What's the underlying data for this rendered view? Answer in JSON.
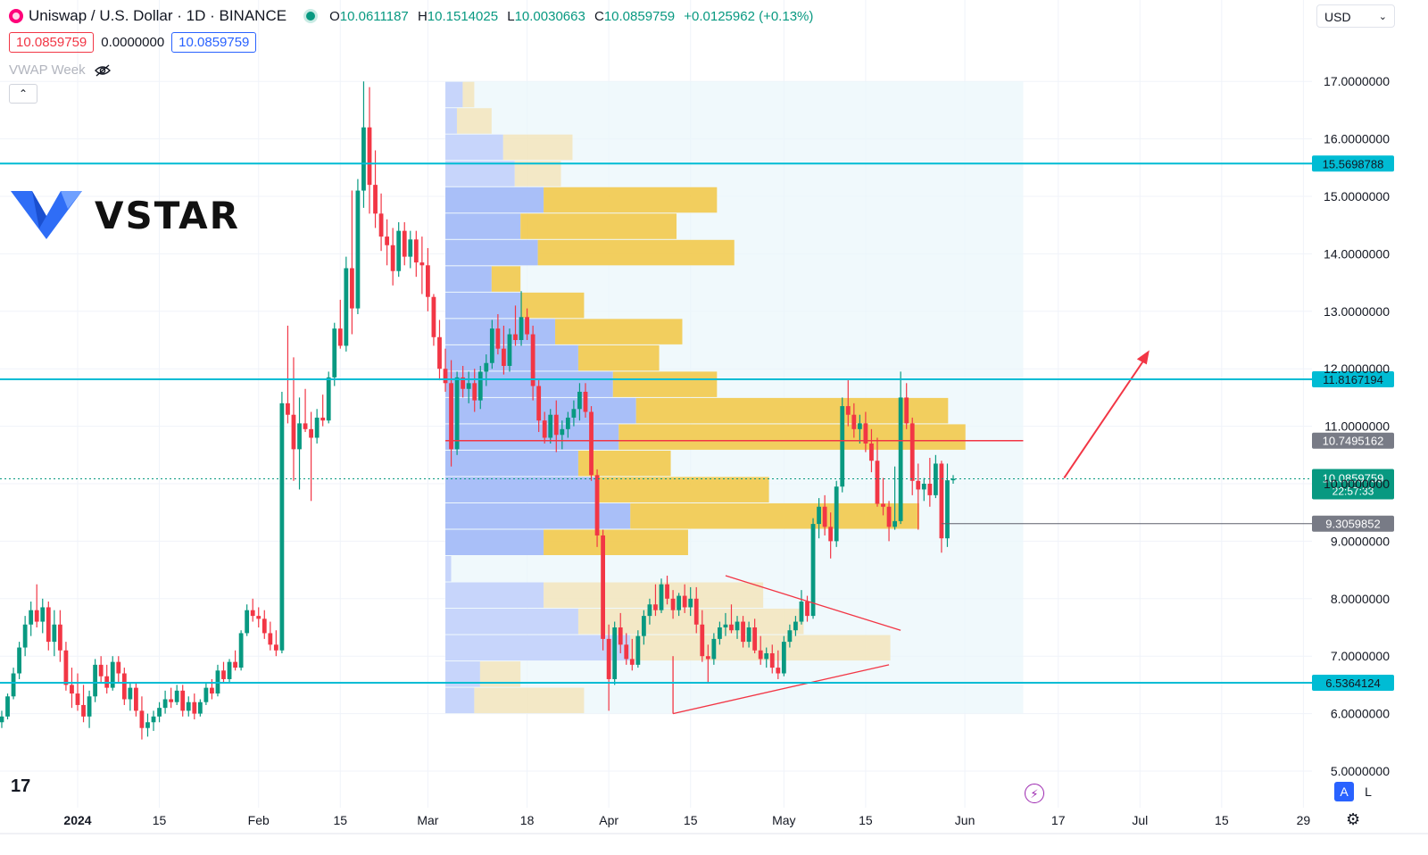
{
  "header": {
    "symbol_title": "Uniswap / U.S. Dollar · 1D · BINANCE",
    "ohlc": [
      {
        "label": "O",
        "value": "10.0611187"
      },
      {
        "label": "H",
        "value": "10.1514025"
      },
      {
        "label": "L",
        "value": "10.0030663"
      },
      {
        "label": "C",
        "value": "10.0859759"
      }
    ],
    "change": "+0.0125962 (+0.13%)",
    "sell_price": "10.0859759",
    "spread": "0.0000000",
    "buy_price": "10.0859759",
    "indicator_label": "VWAP Week",
    "currency": "USD"
  },
  "brand": {
    "logo_text": "VSTAR",
    "tv_logo": "17"
  },
  "bottom": {
    "auto_label": "A",
    "log_label": "L"
  },
  "colors": {
    "up": "#089981",
    "down": "#f23645",
    "level_line": "#00bcd4",
    "poc_line": "#f23645",
    "arrow": "#f23645"
  },
  "chart_data": {
    "type": "candlestick",
    "y_axis": {
      "min": 4.6,
      "max": 17.5,
      "ticks": [
        "5.0000000",
        "6.0000000",
        "7.0000000",
        "8.0000000",
        "9.0000000",
        "10.0000000",
        "11.0000000",
        "12.0000000",
        "13.0000000",
        "14.0000000",
        "15.0000000",
        "16.0000000",
        "17.0000000"
      ]
    },
    "x_axis": {
      "ticks": [
        {
          "label": "2024",
          "day": 0,
          "bold": true
        },
        {
          "label": "15",
          "day": 14
        },
        {
          "label": "Feb",
          "day": 31
        },
        {
          "label": "15",
          "day": 45
        },
        {
          "label": "Mar",
          "day": 60
        },
        {
          "label": "18",
          "day": 77
        },
        {
          "label": "Apr",
          "day": 91
        },
        {
          "label": "15",
          "day": 105
        },
        {
          "label": "May",
          "day": 121
        },
        {
          "label": "15",
          "day": 135
        },
        {
          "label": "Jun",
          "day": 152
        },
        {
          "label": "17",
          "day": 168
        },
        {
          "label": "Jul",
          "day": 182
        },
        {
          "label": "15",
          "day": 196
        },
        {
          "label": "29",
          "day": 210
        }
      ]
    },
    "horizontal_levels": [
      {
        "price": 15.5698788,
        "label": "15.5698788",
        "style": "cyan"
      },
      {
        "price": 11.8167194,
        "label": "11.8167194",
        "style": "cyan"
      },
      {
        "price": 6.5364124,
        "label": "6.5364124",
        "style": "cyan"
      },
      {
        "price": 10.7495162,
        "label": "10.7495162",
        "style": "poc"
      },
      {
        "price": 9.3059852,
        "label": "9.3059852",
        "style": "gray"
      }
    ],
    "current_price": {
      "price": 10.0859759,
      "label": "10.0859759",
      "countdown": "22:57:33"
    },
    "volume_profile": {
      "day_start": 63,
      "day_end": 162,
      "price_low": 6.0,
      "price_high": 17.0,
      "rows": [
        [
          0.03,
          0.02
        ],
        [
          0.02,
          0.06
        ],
        [
          0.1,
          0.12
        ],
        [
          0.12,
          0.08
        ],
        [
          0.17,
          0.3
        ],
        [
          0.13,
          0.27
        ],
        [
          0.16,
          0.34
        ],
        [
          0.08,
          0.05
        ],
        [
          0.13,
          0.11
        ],
        [
          0.19,
          0.22
        ],
        [
          0.23,
          0.14
        ],
        [
          0.29,
          0.18
        ],
        [
          0.33,
          0.54
        ],
        [
          0.3,
          0.6
        ],
        [
          0.23,
          0.16
        ],
        [
          0.26,
          0.3
        ],
        [
          0.32,
          0.5
        ],
        [
          0.17,
          0.25
        ],
        [
          0.01,
          0.0
        ],
        [
          0.17,
          0.38
        ],
        [
          0.23,
          0.39
        ],
        [
          0.32,
          0.45
        ],
        [
          0.06,
          0.07
        ],
        [
          0.05,
          0.19
        ]
      ]
    },
    "candles": [
      [
        5.85,
        6.05,
        5.75,
        5.95
      ],
      [
        5.95,
        6.35,
        5.9,
        6.3
      ],
      [
        6.3,
        6.8,
        6.25,
        6.7
      ],
      [
        6.7,
        7.25,
        6.6,
        7.15
      ],
      [
        7.15,
        7.7,
        7.0,
        7.55
      ],
      [
        7.55,
        7.95,
        7.35,
        7.8
      ],
      [
        7.8,
        8.25,
        7.5,
        7.6
      ],
      [
        7.6,
        8.0,
        7.4,
        7.85
      ],
      [
        7.85,
        7.95,
        7.1,
        7.25
      ],
      [
        7.25,
        7.8,
        7.0,
        7.55
      ],
      [
        7.55,
        7.8,
        6.9,
        7.1
      ],
      [
        7.1,
        7.25,
        6.4,
        6.5
      ],
      [
        6.5,
        6.8,
        6.1,
        6.35
      ],
      [
        6.35,
        6.7,
        6.05,
        6.15
      ],
      [
        6.15,
        6.5,
        5.85,
        5.95
      ],
      [
        5.95,
        6.4,
        5.75,
        6.3
      ],
      [
        6.3,
        6.95,
        6.2,
        6.85
      ],
      [
        6.85,
        7.0,
        6.55,
        6.65
      ],
      [
        6.65,
        6.85,
        6.35,
        6.45
      ],
      [
        6.45,
        7.0,
        6.4,
        6.9
      ],
      [
        6.9,
        7.0,
        6.55,
        6.7
      ],
      [
        6.7,
        6.8,
        6.15,
        6.25
      ],
      [
        6.25,
        6.55,
        6.05,
        6.45
      ],
      [
        6.45,
        6.55,
        5.95,
        6.05
      ],
      [
        6.05,
        6.3,
        5.55,
        5.75
      ],
      [
        5.75,
        6.0,
        5.6,
        5.85
      ],
      [
        5.85,
        6.05,
        5.7,
        5.95
      ],
      [
        5.95,
        6.2,
        5.85,
        6.1
      ],
      [
        6.1,
        6.4,
        6.0,
        6.25
      ],
      [
        6.25,
        6.45,
        6.1,
        6.2
      ],
      [
        6.2,
        6.5,
        6.15,
        6.4
      ],
      [
        6.4,
        6.5,
        5.95,
        6.05
      ],
      [
        6.05,
        6.3,
        5.95,
        6.2
      ],
      [
        6.2,
        6.35,
        5.9,
        6.0
      ],
      [
        6.0,
        6.25,
        5.95,
        6.2
      ],
      [
        6.2,
        6.55,
        6.15,
        6.45
      ],
      [
        6.45,
        6.6,
        6.25,
        6.35
      ],
      [
        6.35,
        6.85,
        6.3,
        6.75
      ],
      [
        6.75,
        6.9,
        6.55,
        6.6
      ],
      [
        6.6,
        6.95,
        6.55,
        6.9
      ],
      [
        6.9,
        7.1,
        6.75,
        6.8
      ],
      [
        6.8,
        7.45,
        6.75,
        7.4
      ],
      [
        7.4,
        7.9,
        7.35,
        7.8
      ],
      [
        7.8,
        8.0,
        7.6,
        7.7
      ],
      [
        7.7,
        7.85,
        7.5,
        7.65
      ],
      [
        7.65,
        7.8,
        7.3,
        7.4
      ],
      [
        7.4,
        7.6,
        7.1,
        7.2
      ],
      [
        7.2,
        7.45,
        7.0,
        7.1
      ],
      [
        7.1,
        11.6,
        7.05,
        11.4
      ],
      [
        11.4,
        12.75,
        11.05,
        11.2
      ],
      [
        11.2,
        12.2,
        10.05,
        10.6
      ],
      [
        10.6,
        11.5,
        9.9,
        11.05
      ],
      [
        11.05,
        11.65,
        10.9,
        10.95
      ],
      [
        10.95,
        11.25,
        9.7,
        10.8
      ],
      [
        10.8,
        11.3,
        10.7,
        11.15
      ],
      [
        11.15,
        11.55,
        11.0,
        11.1
      ],
      [
        11.1,
        11.95,
        11.05,
        11.85
      ],
      [
        11.85,
        12.8,
        11.7,
        12.7
      ],
      [
        12.7,
        13.2,
        12.35,
        12.4
      ],
      [
        12.4,
        13.95,
        12.3,
        13.75
      ],
      [
        13.75,
        15.1,
        12.6,
        13.05
      ],
      [
        13.05,
        15.3,
        12.95,
        15.1
      ],
      [
        15.1,
        17.0,
        14.8,
        16.2
      ],
      [
        16.2,
        16.9,
        14.7,
        15.2
      ],
      [
        15.2,
        15.8,
        14.45,
        14.7
      ],
      [
        14.7,
        15.05,
        14.05,
        14.3
      ],
      [
        14.3,
        14.6,
        13.8,
        14.15
      ],
      [
        14.15,
        14.45,
        13.45,
        13.7
      ],
      [
        13.7,
        14.55,
        13.6,
        14.4
      ],
      [
        14.4,
        14.55,
        13.8,
        13.95
      ],
      [
        13.95,
        14.4,
        13.75,
        14.25
      ],
      [
        14.25,
        14.4,
        13.6,
        13.85
      ],
      [
        13.85,
        14.3,
        13.3,
        13.8
      ],
      [
        13.8,
        14.1,
        13.0,
        13.25
      ],
      [
        13.25,
        13.3,
        12.4,
        12.55
      ],
      [
        12.55,
        12.85,
        11.8,
        12.0
      ],
      [
        12.0,
        12.35,
        11.6,
        11.75
      ],
      [
        11.75,
        12.15,
        10.3,
        10.6
      ],
      [
        10.6,
        11.95,
        10.5,
        11.85
      ],
      [
        11.85,
        12.05,
        11.5,
        11.65
      ],
      [
        11.65,
        11.95,
        11.4,
        11.75
      ],
      [
        11.75,
        12.0,
        11.25,
        11.45
      ],
      [
        11.45,
        12.05,
        11.3,
        11.95
      ],
      [
        11.95,
        12.25,
        11.7,
        12.1
      ],
      [
        12.1,
        12.85,
        12.0,
        12.7
      ],
      [
        12.7,
        12.95,
        12.25,
        12.35
      ],
      [
        12.35,
        12.75,
        11.9,
        12.05
      ],
      [
        12.05,
        12.7,
        11.95,
        12.6
      ],
      [
        12.6,
        13.1,
        12.4,
        12.5
      ],
      [
        12.5,
        13.35,
        12.4,
        12.9
      ],
      [
        12.9,
        13.05,
        12.5,
        12.6
      ],
      [
        12.6,
        12.75,
        11.45,
        11.7
      ],
      [
        11.7,
        11.8,
        10.9,
        11.1
      ],
      [
        11.1,
        11.25,
        10.7,
        10.8
      ],
      [
        10.8,
        11.3,
        10.7,
        11.2
      ],
      [
        11.2,
        11.45,
        10.55,
        10.85
      ],
      [
        10.85,
        11.1,
        10.6,
        10.95
      ],
      [
        10.95,
        11.25,
        10.8,
        11.15
      ],
      [
        11.15,
        11.45,
        11.0,
        11.3
      ],
      [
        11.3,
        11.75,
        11.1,
        11.6
      ],
      [
        11.6,
        11.75,
        11.15,
        11.25
      ],
      [
        11.25,
        11.35,
        10.05,
        10.15
      ],
      [
        10.15,
        10.25,
        8.9,
        9.1
      ],
      [
        9.1,
        9.2,
        7.1,
        7.3
      ],
      [
        7.3,
        7.55,
        6.05,
        6.6
      ],
      [
        6.6,
        7.6,
        6.5,
        7.5
      ],
      [
        7.5,
        7.75,
        7.05,
        7.2
      ],
      [
        7.2,
        7.4,
        6.85,
        6.95
      ],
      [
        6.95,
        7.3,
        6.75,
        6.85
      ],
      [
        6.85,
        7.45,
        6.8,
        7.35
      ],
      [
        7.35,
        7.8,
        7.2,
        7.7
      ],
      [
        7.7,
        8.0,
        7.55,
        7.9
      ],
      [
        7.9,
        8.25,
        7.7,
        7.8
      ],
      [
        7.8,
        8.35,
        7.75,
        8.25
      ],
      [
        8.25,
        8.4,
        7.9,
        8.0
      ],
      [
        8.0,
        8.15,
        7.65,
        7.8
      ],
      [
        7.8,
        8.1,
        7.7,
        8.05
      ],
      [
        8.05,
        8.25,
        7.75,
        7.85
      ],
      [
        7.85,
        8.2,
        7.7,
        8.0
      ],
      [
        8.0,
        8.2,
        7.4,
        7.55
      ],
      [
        7.55,
        7.8,
        6.9,
        7.0
      ],
      [
        7.0,
        7.2,
        6.55,
        6.95
      ],
      [
        6.95,
        7.4,
        6.85,
        7.3
      ],
      [
        7.3,
        7.6,
        7.2,
        7.5
      ],
      [
        7.5,
        7.75,
        7.35,
        7.55
      ],
      [
        7.55,
        7.9,
        7.4,
        7.45
      ],
      [
        7.45,
        7.7,
        7.3,
        7.6
      ],
      [
        7.6,
        7.7,
        7.15,
        7.25
      ],
      [
        7.25,
        7.6,
        7.15,
        7.5
      ],
      [
        7.5,
        7.65,
        7.05,
        7.1
      ],
      [
        7.1,
        7.35,
        6.85,
        6.95
      ],
      [
        6.95,
        7.15,
        6.8,
        7.05
      ],
      [
        7.05,
        7.2,
        6.7,
        6.8
      ],
      [
        6.8,
        7.1,
        6.6,
        6.7
      ],
      [
        6.7,
        7.35,
        6.65,
        7.25
      ],
      [
        7.25,
        7.55,
        7.15,
        7.45
      ],
      [
        7.45,
        7.7,
        7.35,
        7.6
      ],
      [
        7.6,
        8.15,
        7.55,
        7.95
      ],
      [
        7.95,
        8.05,
        7.6,
        7.7
      ],
      [
        7.7,
        9.4,
        7.65,
        9.3
      ],
      [
        9.3,
        9.75,
        9.05,
        9.6
      ],
      [
        9.6,
        9.8,
        9.1,
        9.25
      ],
      [
        9.25,
        9.5,
        8.7,
        9.0
      ],
      [
        9.0,
        10.05,
        8.9,
        9.95
      ],
      [
        9.95,
        11.5,
        9.85,
        11.35
      ],
      [
        11.35,
        11.8,
        11.0,
        11.2
      ],
      [
        11.2,
        11.4,
        10.8,
        10.95
      ],
      [
        10.95,
        11.2,
        10.7,
        11.05
      ],
      [
        11.05,
        11.25,
        10.55,
        10.7
      ],
      [
        10.7,
        10.95,
        10.2,
        10.4
      ],
      [
        10.4,
        10.8,
        9.6,
        9.65
      ],
      [
        9.65,
        10.1,
        9.45,
        9.6
      ],
      [
        9.6,
        9.7,
        9.0,
        9.25
      ],
      [
        9.25,
        10.3,
        9.2,
        9.35
      ],
      [
        9.35,
        11.95,
        9.3,
        11.5
      ],
      [
        11.5,
        11.75,
        10.95,
        11.05
      ],
      [
        11.05,
        11.15,
        9.8,
        10.05
      ],
      [
        10.05,
        10.35,
        9.2,
        9.9
      ],
      [
        9.9,
        10.1,
        9.7,
        10.0
      ],
      [
        10.0,
        10.45,
        9.6,
        9.8
      ],
      [
        9.8,
        10.5,
        9.75,
        10.35
      ],
      [
        10.35,
        10.4,
        8.8,
        9.05
      ],
      [
        9.05,
        10.35,
        8.9,
        10.06
      ],
      [
        10.06,
        10.15,
        10.0,
        10.086
      ]
    ]
  }
}
